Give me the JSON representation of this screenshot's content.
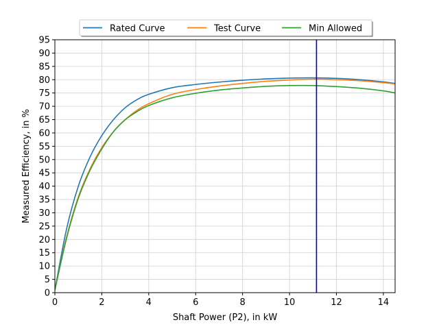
{
  "chart_data": {
    "type": "line",
    "title": "",
    "xlabel": "Shaft Power (P2), in kW",
    "ylabel": "Measured Efficiency, in %",
    "xlim": [
      0,
      14.5
    ],
    "ylim": [
      0,
      95
    ],
    "xticks": [
      0,
      2,
      4,
      6,
      8,
      10,
      12,
      14
    ],
    "yticks": [
      0,
      5,
      10,
      15,
      20,
      25,
      30,
      35,
      40,
      45,
      50,
      55,
      60,
      65,
      70,
      75,
      80,
      85,
      90,
      95
    ],
    "grid": true,
    "legend_position": "top-center",
    "vertical_line": {
      "x": 11.15,
      "color": "#0000cc"
    },
    "series": [
      {
        "name": "Rated Curve",
        "color": "#1f77b4",
        "x": [
          0,
          0.5,
          1,
          1.5,
          2,
          2.5,
          3,
          3.5,
          4,
          5,
          6,
          7,
          8,
          9,
          10,
          11,
          12,
          13,
          14,
          14.5
        ],
        "y": [
          1,
          24,
          40,
          51,
          59,
          65,
          69.5,
          72.5,
          74.5,
          77,
          78.2,
          79.1,
          79.8,
          80.3,
          80.6,
          80.7,
          80.5,
          80,
          79.2,
          78.6
        ]
      },
      {
        "name": "Test Curve",
        "color": "#ff7f0e",
        "x": [
          0,
          0.5,
          1,
          1.5,
          2,
          2.5,
          3,
          3.5,
          4,
          5,
          6,
          7,
          8,
          9,
          10,
          11,
          12,
          13,
          14,
          14.5
        ],
        "y": [
          1,
          21,
          36,
          46.5,
          54.5,
          60.5,
          65,
          68.5,
          71,
          74.5,
          76.3,
          77.6,
          78.6,
          79.4,
          79.9,
          80.2,
          80,
          79.6,
          78.9,
          78.4
        ]
      },
      {
        "name": "Min Allowed",
        "color": "#2ca02c",
        "x": [
          0,
          0.5,
          1,
          1.5,
          2,
          2.5,
          3,
          3.5,
          4,
          5,
          6,
          7,
          8,
          9,
          10,
          11,
          12,
          13,
          14,
          14.5
        ],
        "y": [
          1,
          20.5,
          35.5,
          46,
          54,
          60.5,
          65,
          68,
          70.3,
          73.2,
          74.9,
          76.1,
          76.9,
          77.5,
          77.8,
          77.8,
          77.4,
          76.8,
          75.8,
          75
        ]
      }
    ]
  }
}
